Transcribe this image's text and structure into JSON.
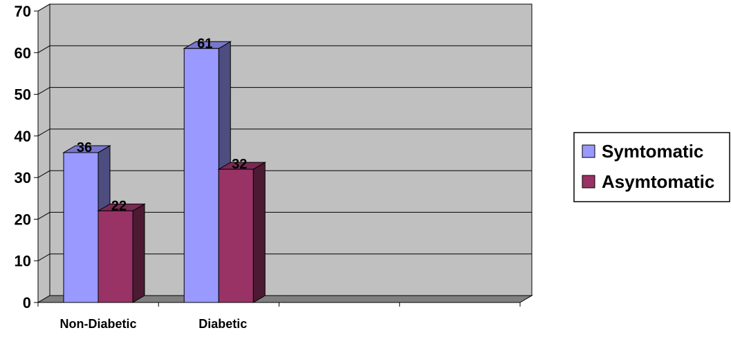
{
  "chart_data": {
    "type": "bar",
    "categories": [
      "Non-Diabetic",
      "Diabetic"
    ],
    "series": [
      {
        "name": "Symtomatic",
        "values": [
          36,
          61
        ],
        "color": "#9999ff",
        "side_color": "#4d4d80",
        "top_color": "#7777cc"
      },
      {
        "name": "Asymtomatic",
        "values": [
          22,
          32
        ],
        "color": "#993366",
        "side_color": "#4d1a33",
        "top_color": "#7a2952"
      }
    ],
    "data_labels": [
      [
        "36",
        "61"
      ],
      [
        "22",
        "32"
      ]
    ],
    "y_ticks": [
      "0",
      "10",
      "20",
      "30",
      "40",
      "50",
      "60",
      "70"
    ],
    "ylim": [
      0,
      70
    ],
    "grid": true,
    "legend_position": "right",
    "wall_color": "#c0c0c0",
    "floor_color": "#808080"
  }
}
